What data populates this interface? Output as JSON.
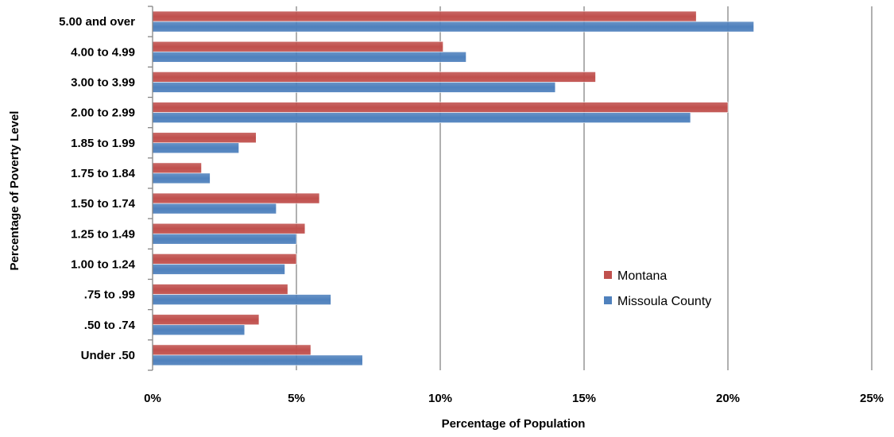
{
  "chart_data": {
    "type": "bar",
    "orientation": "horizontal",
    "title": "",
    "xlabel": "Percentage of Population",
    "ylabel": "Percentage of Poverty Level",
    "categories": [
      "5.00 and over",
      "4.00 to 4.99",
      "3.00 to 3.99",
      "2.00 to 2.99",
      "1.85 to 1.99",
      "1.75 to 1.84",
      "1.50 to 1.74",
      "1.25 to 1.49",
      "1.00 to 1.24",
      ".75 to .99",
      ".50 to .74",
      "Under .50"
    ],
    "series": [
      {
        "name": "Montana",
        "color": "#C0504D",
        "values": [
          18.9,
          10.1,
          15.4,
          20.0,
          3.6,
          1.7,
          5.8,
          5.3,
          5.0,
          4.7,
          3.7,
          5.5
        ]
      },
      {
        "name": "Missoula County",
        "color": "#4F81BD",
        "values": [
          20.9,
          10.9,
          14.0,
          18.7,
          3.0,
          2.0,
          4.3,
          5.0,
          4.6,
          6.2,
          3.2,
          7.3
        ]
      }
    ],
    "xlim": [
      0,
      25
    ],
    "xticks": [
      0,
      5,
      10,
      15,
      20,
      25
    ],
    "xtick_labels": [
      "0%",
      "5%",
      "10%",
      "15%",
      "20%",
      "25%"
    ],
    "grid": "vertical",
    "legend_placement": "right"
  }
}
